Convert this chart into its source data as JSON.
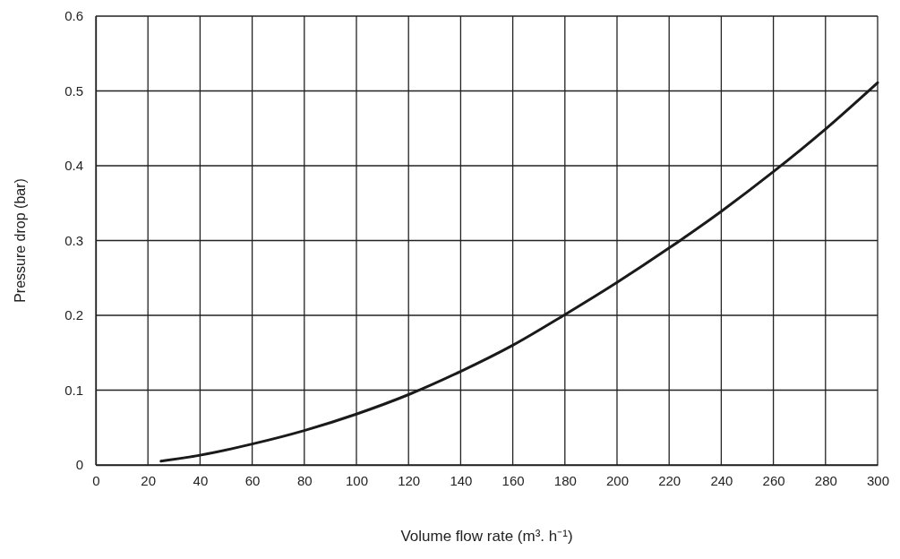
{
  "chart_data": {
    "type": "line",
    "xlabel": "Volume flow rate (m³. h⁻¹)",
    "ylabel": "Pressure drop (bar)",
    "x": [
      25,
      40,
      60,
      80,
      100,
      120,
      140,
      160,
      180,
      200,
      220,
      240,
      260,
      280,
      300
    ],
    "series": [
      {
        "color": "#1a1a1a",
        "values": [
          0.005,
          0.013,
          0.028,
          0.046,
          0.068,
          0.094,
          0.125,
          0.16,
          0.201,
          0.244,
          0.29,
          0.339,
          0.392,
          0.449,
          0.511
        ]
      }
    ],
    "xlim": [
      0,
      300
    ],
    "xticks": [
      0,
      20,
      40,
      60,
      80,
      100,
      120,
      140,
      160,
      180,
      200,
      220,
      240,
      260,
      280,
      300
    ],
    "ylim": [
      0,
      0.6
    ],
    "yticks": [
      0,
      0.1,
      0.2,
      0.3,
      0.4,
      0.5,
      0.6
    ],
    "grid": true,
    "marker": "none",
    "line_style": "solid"
  }
}
